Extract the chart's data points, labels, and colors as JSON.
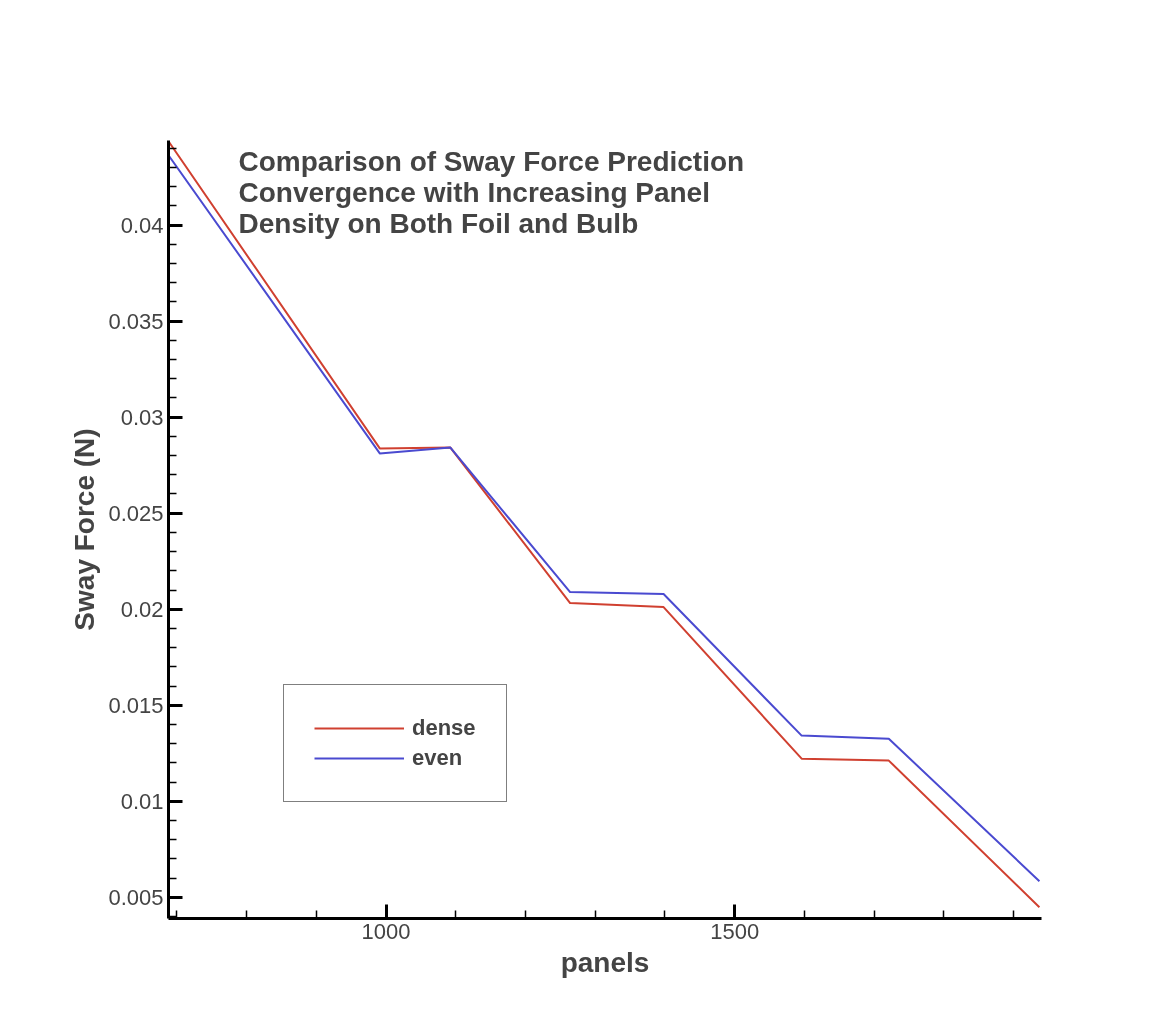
{
  "chart_data": {
    "type": "line",
    "title": "Comparison of Sway Force Prediction\nConvergence with Increasing Panel\nDensity on Both Foil and Bulb",
    "xlabel": "panels",
    "ylabel": "Sway Force (N)",
    "x": [
      688,
      991,
      1092,
      1264,
      1398,
      1596,
      1721,
      1937
    ],
    "series": [
      {
        "name": "dense",
        "color": "#d04030",
        "values": [
          0.04436,
          0.02837,
          0.02842,
          0.02032,
          0.02011,
          0.01222,
          0.01212,
          0.00449
        ]
      },
      {
        "name": "even",
        "color": "#4a4ad0",
        "values": [
          0.04363,
          0.02811,
          0.02842,
          0.02089,
          0.02079,
          0.01342,
          0.01326,
          0.00584
        ]
      }
    ],
    "xlim": [
      688,
      1940
    ],
    "ylim": [
      0.0039,
      0.0444
    ],
    "xticks": [
      1000,
      1500
    ],
    "yticks": [
      {
        "value": 0.005,
        "label": "0.005"
      },
      {
        "value": 0.01,
        "label": "0.01"
      },
      {
        "value": 0.015,
        "label": "0.015"
      },
      {
        "value": 0.02,
        "label": "0.02"
      },
      {
        "value": 0.025,
        "label": "0.025"
      },
      {
        "value": 0.03,
        "label": "0.03"
      },
      {
        "value": 0.035,
        "label": "0.035"
      },
      {
        "value": 0.04,
        "label": "0.04"
      }
    ],
    "grid": false,
    "legend": "bottom left",
    "marker": "none",
    "line_style": "solid"
  }
}
